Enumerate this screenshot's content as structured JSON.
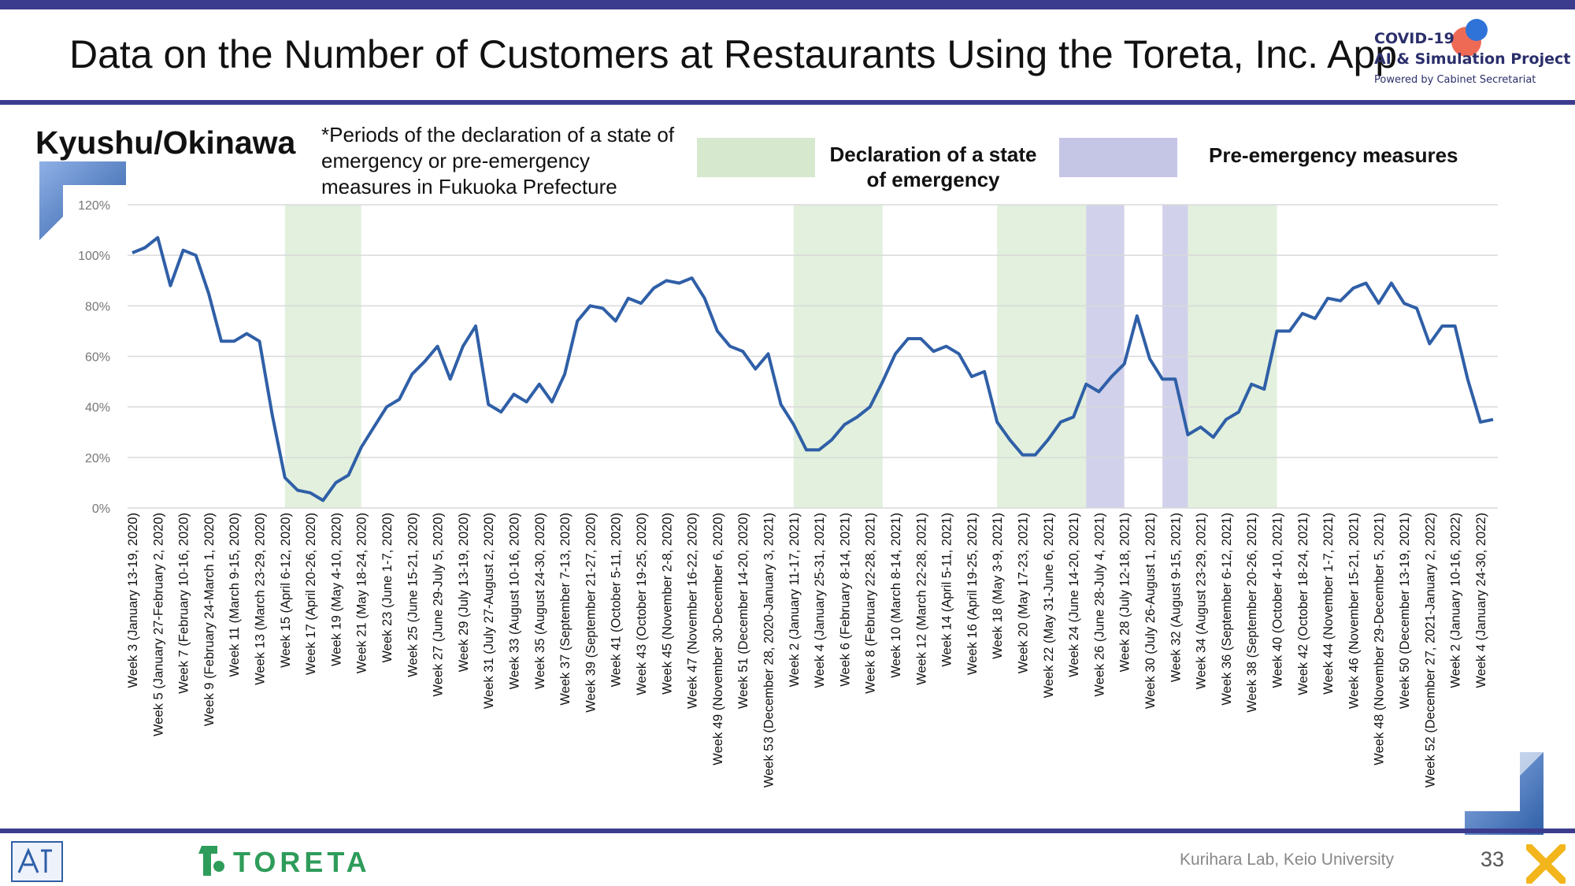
{
  "page": {
    "title": "Data on the Number of Customers at Restaurants Using the Toreta, Inc. App",
    "region": "Kyushu/Okinawa",
    "note": "*Periods of the declaration of a state of emergency or pre-emergency measures in Fukuoka Prefecture",
    "legend": {
      "emergency": "Declaration of a state of emergency",
      "pre_emergency": "Pre-emergency measures",
      "emergency_color": "#d6e9cf",
      "pre_emergency_color": "#c5c6e6"
    },
    "logo": {
      "line1": "COVID-19",
      "line2": "AI & Simulation Project",
      "line3": "Powered by Cabinet Secretariat"
    },
    "footer": {
      "brand": "TORETA",
      "lab": "Kurihara Lab, Keio University",
      "page_number": "33"
    },
    "colors": {
      "accent": "#3c3c8e",
      "line": "#2f5fa7",
      "brand_green": "#2e9c5a"
    }
  },
  "chart_data": {
    "type": "line",
    "y_ticks": [
      "0%",
      "20%",
      "40%",
      "60%",
      "80%",
      "100%",
      "120%"
    ],
    "ylim": [
      0,
      1.2
    ],
    "grid": true,
    "x_labels": [
      "Week 3 (January 13-19, 2020)",
      "Week 5 (January 27-February 2, 2020)",
      "Week 7 (February 10-16, 2020)",
      "Week 9 (February 24-March 1, 2020)",
      "Week 11 (March 9-15, 2020)",
      "Week 13 (March 23-29, 2020)",
      "Week 15 (April 6-12, 2020)",
      "Week 17 (April 20-26, 2020)",
      "Week 19 (May 4-10, 2020)",
      "Week 21 (May 18-24, 2020)",
      "Week 23 (June 1-7, 2020)",
      "Week 25 (June 15-21, 2020)",
      "Week 27 (June 29-July 5, 2020)",
      "Week 29 (July 13-19, 2020)",
      "Week 31 (July 27-August 2, 2020)",
      "Week 33 (August 10-16, 2020)",
      "Week 35 (August 24-30, 2020)",
      "Week 37 (September 7-13, 2020)",
      "Week 39 (September 21-27, 2020)",
      "Week 41 (October 5-11, 2020)",
      "Week 43 (October 19-25, 2020)",
      "Week 45 (November 2-8, 2020)",
      "Week 47 (November 16-22, 2020)",
      "Week 49 (November 30-December 6, 2020)",
      "Week 51 (December 14-20, 2020)",
      "Week 53 (December 28, 2020-January 3, 2021)",
      "Week 2 (January 11-17, 2021)",
      "Week 4 (January 25-31, 2021)",
      "Week 6 (February 8-14, 2021)",
      "Week 8 (February 22-28, 2021)",
      "Week 10 (March 8-14, 2021)",
      "Week 12 (March 22-28, 2021)",
      "Week 14 (April 5-11, 2021)",
      "Week 16 (April 19-25, 2021)",
      "Week 18 (May 3-9, 2021)",
      "Week 20 (May 17-23, 2021)",
      "Week 22 (May 31-June 6, 2021)",
      "Week 24 (June 14-20, 2021)",
      "Week 26 (June 28-July 4, 2021)",
      "Week 28 (July 12-18, 2021)",
      "Week 30 (July 26-August 1, 2021)",
      "Week 32 (August 9-15, 2021)",
      "Week 34 (August 23-29, 2021)",
      "Week 36 (September 6-12, 2021)",
      "Week 38 (September 20-26, 2021)",
      "Week 40 (October 4-10, 2021)",
      "Week 42 (October 18-24, 2021)",
      "Week 44 (November 1-7, 2021)",
      "Week 46 (November 15-21, 2021)",
      "Week 48 (November 29-December 5, 2021)",
      "Week 50 (December 13-19, 2021)",
      "Week 52 (December 27, 2021-January 2, 2022)",
      "Week 2 (January 10-16, 2022)",
      "Week 4 (January 24-30, 2022)"
    ],
    "series": [
      {
        "values": [
          1.01,
          1.03,
          1.07,
          0.88,
          1.02,
          1.0,
          0.85,
          0.66,
          0.66,
          0.69,
          0.66,
          0.37,
          0.12,
          0.07,
          0.06,
          0.03,
          0.1,
          0.13,
          0.24,
          0.32,
          0.4,
          0.43,
          0.53,
          0.58,
          0.64,
          0.51,
          0.64,
          0.72,
          0.41,
          0.38,
          0.45,
          0.42,
          0.49,
          0.42,
          0.53,
          0.74,
          0.8,
          0.79,
          0.74,
          0.83,
          0.81,
          0.87,
          0.9,
          0.89,
          0.91,
          0.83,
          0.7,
          0.64,
          0.62,
          0.55,
          0.61,
          0.41,
          0.33,
          0.23,
          0.23,
          0.27,
          0.33,
          0.36,
          0.4,
          0.5,
          0.61,
          0.67,
          0.67,
          0.62,
          0.64,
          0.61,
          0.52,
          0.54,
          0.34,
          0.27,
          0.21,
          0.21,
          0.27,
          0.34,
          0.36,
          0.49,
          0.46,
          0.52,
          0.57,
          0.76,
          0.59,
          0.51,
          0.51,
          0.29,
          0.32,
          0.28,
          0.35,
          0.38,
          0.49,
          0.47,
          0.7,
          0.7,
          0.77,
          0.75,
          0.83,
          0.82,
          0.87,
          0.89,
          0.81,
          0.89,
          0.81,
          0.79,
          0.65,
          0.72,
          0.72,
          0.51,
          0.34,
          0.35
        ]
      }
    ],
    "shaded_periods": [
      {
        "type": "emergency",
        "start_index": 12,
        "end_index": 18
      },
      {
        "type": "emergency",
        "start_index": 52,
        "end_index": 59
      },
      {
        "type": "emergency",
        "start_index": 68,
        "end_index": 75
      },
      {
        "type": "pre_emergency",
        "start_index": 75,
        "end_index": 78
      },
      {
        "type": "pre_emergency",
        "start_index": 81,
        "end_index": 83
      },
      {
        "type": "emergency",
        "start_index": 83,
        "end_index": 90
      }
    ]
  }
}
